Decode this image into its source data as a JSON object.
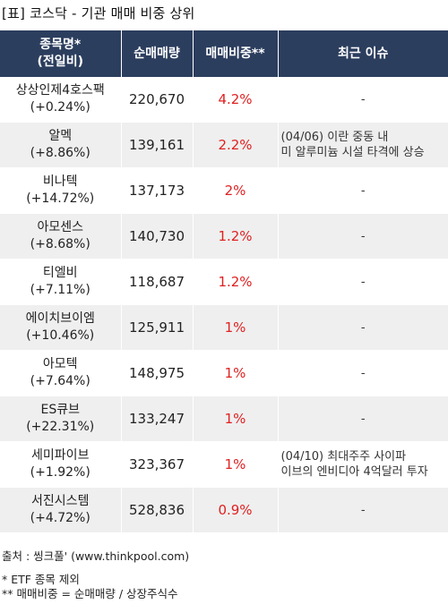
{
  "title": "[표] 코스닥 - 기관 매매 비중 상위",
  "columns": [
    {
      "line1": "종목명*",
      "line2": "(전일비)"
    },
    {
      "line1": "순매매량",
      "line2": ""
    },
    {
      "line1": "매매비중**",
      "line2": ""
    },
    {
      "line1": "최근 이슈",
      "line2": ""
    }
  ],
  "rows": [
    {
      "name": "상상인제4호스팩",
      "change": "(+0.24%)",
      "volume": "220,670",
      "ratio": "4.2%",
      "issue": [
        "-"
      ]
    },
    {
      "name": "알멕",
      "change": "(+8.86%)",
      "volume": "139,161",
      "ratio": "2.2%",
      "issue": [
        "(04/06) 이란 중동 내",
        "미 알루미늄 시설 타격에 상승"
      ]
    },
    {
      "name": "비나텍",
      "change": "(+14.72%)",
      "volume": "137,173",
      "ratio": "2%",
      "issue": [
        "-"
      ]
    },
    {
      "name": "아모센스",
      "change": "(+8.68%)",
      "volume": "140,730",
      "ratio": "1.2%",
      "issue": [
        "-"
      ]
    },
    {
      "name": "티엘비",
      "change": "(+7.11%)",
      "volume": "118,687",
      "ratio": "1.2%",
      "issue": [
        "-"
      ]
    },
    {
      "name": "에이치브이엠",
      "change": "(+10.46%)",
      "volume": "125,911",
      "ratio": "1%",
      "issue": [
        "-"
      ]
    },
    {
      "name": "아모텍",
      "change": "(+7.64%)",
      "volume": "148,975",
      "ratio": "1%",
      "issue": [
        "-"
      ]
    },
    {
      "name": "ES큐브",
      "change": "(+22.31%)",
      "volume": "133,247",
      "ratio": "1%",
      "issue": [
        "-"
      ]
    },
    {
      "name": "세미파이브",
      "change": "(+1.92%)",
      "volume": "323,367",
      "ratio": "1%",
      "issue": [
        "(04/10) 최대주주 사이파",
        "이브의 엔비디아 4억달러 투자"
      ]
    },
    {
      "name": "서진시스템",
      "change": "(+4.72%)",
      "volume": "528,836",
      "ratio": "0.9%",
      "issue": [
        "-"
      ]
    }
  ],
  "footer": {
    "source": "출처 : 씽크풀' (www.thinkpool.com)",
    "note1": "* ETF 종목 제외",
    "note2": "** 매매비중 = 순매매량 / 상장주식수"
  }
}
